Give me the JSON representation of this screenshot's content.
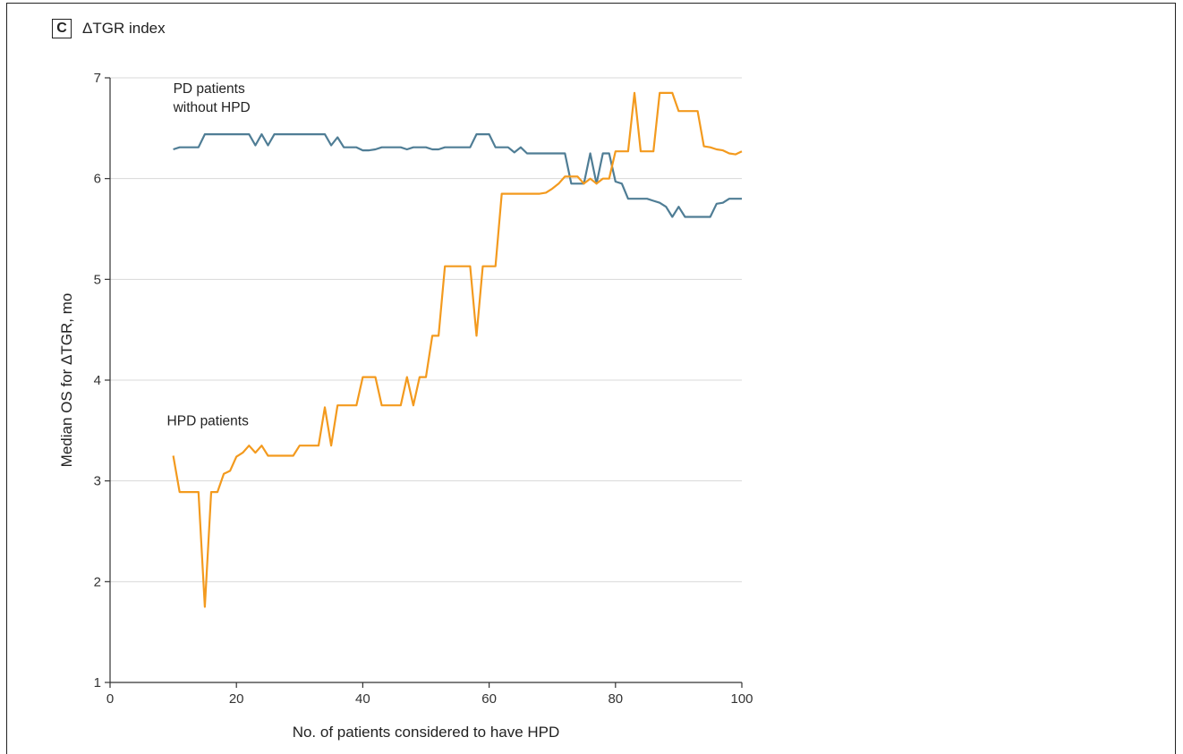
{
  "panel": {
    "letter": "C",
    "title": "ΔTGR index"
  },
  "chart_data": {
    "type": "line",
    "xlabel": "No. of patients considered to have HPD",
    "ylabel": "Median OS for ΔTGR, mo",
    "xlim": [
      0,
      100
    ],
    "ylim": [
      1,
      7
    ],
    "xticks": [
      0,
      20,
      40,
      60,
      80,
      100
    ],
    "yticks": [
      1,
      2,
      3,
      4,
      5,
      6,
      7
    ],
    "grid": "horizontal",
    "colors": {
      "pd_without_hpd": "#4f7d95",
      "hpd": "#f39a1e",
      "grid": "#d8d8d8"
    },
    "annotations": [
      {
        "lines": [
          "PD patients",
          "without HPD"
        ],
        "at": [
          10,
          6.85
        ]
      },
      {
        "lines": [
          "HPD patients"
        ],
        "at": [
          9,
          3.55
        ]
      }
    ],
    "series": [
      {
        "key": "pd_without_hpd",
        "x": [
          10,
          11,
          13,
          14,
          15,
          16,
          17,
          18,
          19,
          20,
          21,
          22,
          23,
          24,
          25,
          26,
          27,
          28,
          29,
          30,
          31,
          32,
          33,
          34,
          35,
          36,
          37,
          38,
          39,
          40,
          41,
          42,
          43,
          44,
          45,
          46,
          47,
          48,
          49,
          50,
          51,
          52,
          53,
          54,
          55,
          56,
          57,
          58,
          59,
          60,
          61,
          62,
          63,
          64,
          65,
          66,
          67,
          68,
          69,
          70,
          71,
          72,
          73,
          74,
          75,
          76,
          77,
          78,
          79,
          80,
          81,
          82,
          83,
          84,
          85,
          86,
          87,
          88,
          89,
          90,
          91,
          92,
          93,
          94,
          95,
          96,
          97,
          98,
          99,
          100
        ],
        "y": [
          6.29,
          6.31,
          6.31,
          6.31,
          6.44,
          6.44,
          6.44,
          6.44,
          6.44,
          6.44,
          6.44,
          6.44,
          6.33,
          6.44,
          6.33,
          6.44,
          6.44,
          6.44,
          6.44,
          6.44,
          6.44,
          6.44,
          6.44,
          6.44,
          6.33,
          6.41,
          6.31,
          6.31,
          6.31,
          6.28,
          6.28,
          6.29,
          6.31,
          6.31,
          6.31,
          6.31,
          6.29,
          6.31,
          6.31,
          6.31,
          6.29,
          6.29,
          6.31,
          6.31,
          6.31,
          6.31,
          6.31,
          6.44,
          6.44,
          6.44,
          6.31,
          6.31,
          6.31,
          6.26,
          6.31,
          6.25,
          6.25,
          6.25,
          6.25,
          6.25,
          6.25,
          6.25,
          5.95,
          5.95,
          5.95,
          6.25,
          5.95,
          6.25,
          6.25,
          5.97,
          5.95,
          5.8,
          5.8,
          5.8,
          5.8,
          5.78,
          5.76,
          5.72,
          5.62,
          5.72,
          5.62,
          5.62,
          5.62,
          5.62,
          5.62,
          5.75,
          5.76,
          5.8,
          5.8,
          5.8
        ]
      },
      {
        "key": "hpd",
        "x": [
          10,
          11,
          12,
          13,
          14,
          15,
          16,
          17,
          18,
          19,
          20,
          21,
          22,
          23,
          24,
          25,
          26,
          27,
          28,
          29,
          30,
          31,
          32,
          33,
          34,
          35,
          36,
          37,
          38,
          39,
          40,
          41,
          42,
          43,
          44,
          45,
          46,
          47,
          48,
          49,
          50,
          51,
          52,
          53,
          54,
          55,
          56,
          57,
          58,
          59,
          60,
          61,
          62,
          63,
          64,
          65,
          66,
          67,
          68,
          69,
          70,
          71,
          72,
          73,
          74,
          75,
          76,
          77,
          78,
          79,
          80,
          81,
          82,
          83,
          84,
          85,
          86,
          87,
          88,
          89,
          90,
          91,
          92,
          93,
          94,
          95,
          96,
          97,
          98,
          99,
          100
        ],
        "y": [
          3.25,
          2.89,
          2.89,
          2.89,
          2.89,
          1.75,
          2.89,
          2.89,
          3.07,
          3.1,
          3.24,
          3.28,
          3.35,
          3.28,
          3.35,
          3.25,
          3.25,
          3.25,
          3.25,
          3.25,
          3.35,
          3.35,
          3.35,
          3.35,
          3.73,
          3.35,
          3.75,
          3.75,
          3.75,
          3.75,
          4.03,
          4.03,
          4.03,
          3.75,
          3.75,
          3.75,
          3.75,
          4.03,
          3.75,
          4.03,
          4.03,
          4.44,
          4.44,
          5.13,
          5.13,
          5.13,
          5.13,
          5.13,
          4.44,
          5.13,
          5.13,
          5.13,
          5.85,
          5.85,
          5.85,
          5.85,
          5.85,
          5.85,
          5.85,
          5.86,
          5.9,
          5.95,
          6.02,
          6.02,
          6.02,
          5.95,
          6.0,
          5.95,
          6.0,
          6.0,
          6.27,
          6.27,
          6.27,
          6.85,
          6.27,
          6.27,
          6.27,
          6.85,
          6.85,
          6.85,
          6.67,
          6.67,
          6.67,
          6.67,
          6.32,
          6.31,
          6.29,
          6.28,
          6.25,
          6.24,
          6.27
        ]
      }
    ]
  }
}
